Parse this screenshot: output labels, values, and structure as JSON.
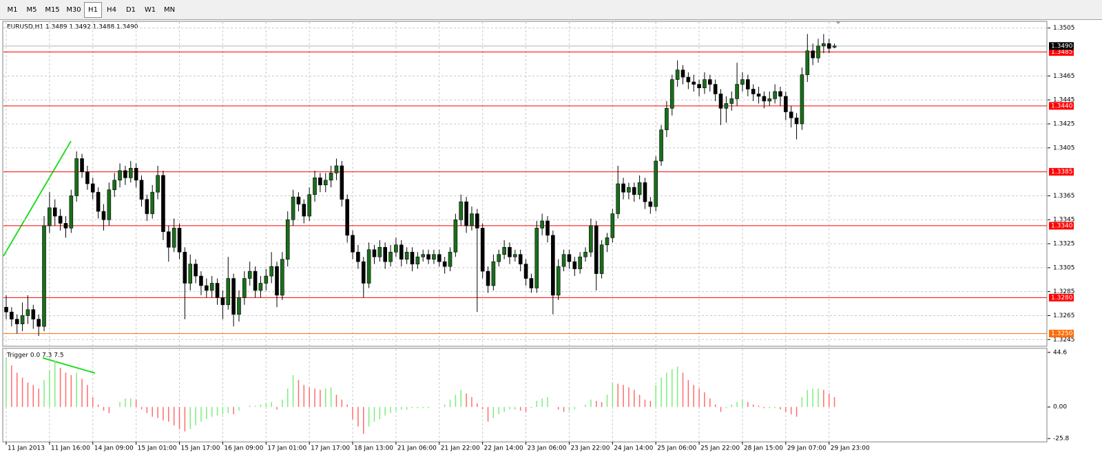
{
  "toolbar": {
    "timeframes": [
      "M1",
      "M5",
      "M15",
      "M30",
      "H1",
      "H4",
      "D1",
      "W1",
      "MN"
    ],
    "active": "H1"
  },
  "chart_data": {
    "type": "candlestick",
    "title": "EURUSD,H1  1.3489 1.3492 1.3488 1.3490",
    "categories": [
      "11 Jan 2013",
      null,
      null,
      null,
      null,
      null,
      null,
      null,
      "11 Jan 16:00",
      null,
      null,
      null,
      null,
      null,
      null,
      null,
      "14 Jan 09:00",
      null,
      null,
      null,
      null,
      null,
      null,
      null,
      "15 Jan 01:00",
      null,
      null,
      null,
      null,
      null,
      null,
      null,
      "15 Jan 17:00",
      null,
      null,
      null,
      null,
      null,
      null,
      null,
      "16 Jan 09:00",
      null,
      null,
      null,
      null,
      null,
      null,
      null,
      "17 Jan 01:00",
      null,
      null,
      null,
      null,
      null,
      null,
      null,
      "17 Jan 17:00",
      null,
      null,
      null,
      null,
      null,
      null,
      null,
      "18 Jan 13:00",
      null,
      null,
      null,
      null,
      null,
      null,
      null,
      "21 Jan 06:00",
      null,
      null,
      null,
      null,
      null,
      null,
      null,
      "21 Jan 22:00",
      null,
      null,
      null,
      null,
      null,
      null,
      null,
      "22 Jan 14:00",
      null,
      null,
      null,
      null,
      null,
      null,
      null,
      "23 Jan 06:00",
      null,
      null,
      null,
      null,
      null,
      null,
      null,
      "23 Jan 22:00",
      null,
      null,
      null,
      null,
      null,
      null,
      null,
      "24 Jan 14:00",
      null,
      null,
      null,
      null,
      null,
      null,
      null,
      "25 Jan 06:00",
      null,
      null,
      null,
      null,
      null,
      null,
      null,
      "25 Jan 22:00",
      null,
      null,
      null,
      null,
      null,
      null,
      null,
      "28 Jan 15:00",
      null,
      null,
      null,
      null,
      null,
      null,
      null,
      "29 Jan 07:00",
      null,
      null,
      null,
      null,
      null,
      null,
      null,
      "29 Jan 23:00",
      null
    ],
    "candles": [
      [
        1.3272,
        1.3282,
        1.3262,
        1.3268
      ],
      [
        1.3268,
        1.3272,
        1.3256,
        1.3262
      ],
      [
        1.3262,
        1.3266,
        1.325,
        1.3258
      ],
      [
        1.3258,
        1.3276,
        1.3252,
        1.3265
      ],
      [
        1.3265,
        1.3282,
        1.3258,
        1.327
      ],
      [
        1.327,
        1.3274,
        1.3254,
        1.3262
      ],
      [
        1.3262,
        1.3266,
        1.3248,
        1.3256
      ],
      [
        1.3256,
        1.3348,
        1.3252,
        1.334
      ],
      [
        1.334,
        1.3368,
        1.3334,
        1.3355
      ],
      [
        1.3355,
        1.3362,
        1.334,
        1.3348
      ],
      [
        1.3348,
        1.3354,
        1.3336,
        1.3342
      ],
      [
        1.3342,
        1.3348,
        1.333,
        1.3338
      ],
      [
        1.3338,
        1.337,
        1.3334,
        1.3365
      ],
      [
        1.3365,
        1.3402,
        1.336,
        1.3396
      ],
      [
        1.3396,
        1.34,
        1.338,
        1.3385
      ],
      [
        1.3385,
        1.339,
        1.337,
        1.3375
      ],
      [
        1.3375,
        1.338,
        1.3362,
        1.3368
      ],
      [
        1.3368,
        1.3372,
        1.3346,
        1.3352
      ],
      [
        1.3352,
        1.3358,
        1.3336,
        1.3345
      ],
      [
        1.3345,
        1.3376,
        1.334,
        1.337
      ],
      [
        1.337,
        1.3384,
        1.3364,
        1.3378
      ],
      [
        1.3378,
        1.3392,
        1.3372,
        1.3386
      ],
      [
        1.3386,
        1.339,
        1.3374,
        1.338
      ],
      [
        1.338,
        1.3394,
        1.3376,
        1.3388
      ],
      [
        1.3388,
        1.3392,
        1.3372,
        1.3378
      ],
      [
        1.3378,
        1.3382,
        1.3356,
        1.3362
      ],
      [
        1.3362,
        1.3366,
        1.3344,
        1.335
      ],
      [
        1.335,
        1.3374,
        1.3346,
        1.3368
      ],
      [
        1.3368,
        1.339,
        1.3362,
        1.3382
      ],
      [
        1.3382,
        1.3386,
        1.3328,
        1.3335
      ],
      [
        1.3335,
        1.334,
        1.331,
        1.3322
      ],
      [
        1.3322,
        1.3346,
        1.3318,
        1.3338
      ],
      [
        1.3338,
        1.3342,
        1.3312,
        1.3318
      ],
      [
        1.3318,
        1.3322,
        1.3262,
        1.3292
      ],
      [
        1.3292,
        1.3316,
        1.3286,
        1.3308
      ],
      [
        1.3308,
        1.3312,
        1.3292,
        1.3298
      ],
      [
        1.3298,
        1.3302,
        1.3282,
        1.329
      ],
      [
        1.329,
        1.3296,
        1.328,
        1.3286
      ],
      [
        1.3286,
        1.3298,
        1.328,
        1.3292
      ],
      [
        1.3292,
        1.3296,
        1.3274,
        1.328
      ],
      [
        1.328,
        1.3286,
        1.3262,
        1.3274
      ],
      [
        1.3274,
        1.3314,
        1.327,
        1.3296
      ],
      [
        1.3296,
        1.33,
        1.3256,
        1.3266
      ],
      [
        1.3266,
        1.3286,
        1.326,
        1.328
      ],
      [
        1.328,
        1.3302,
        1.3274,
        1.3296
      ],
      [
        1.3296,
        1.331,
        1.329,
        1.3302
      ],
      [
        1.3302,
        1.3306,
        1.328,
        1.3286
      ],
      [
        1.3286,
        1.3298,
        1.328,
        1.3292
      ],
      [
        1.3292,
        1.3304,
        1.3286,
        1.3298
      ],
      [
        1.3298,
        1.3318,
        1.3292,
        1.3306
      ],
      [
        1.3306,
        1.331,
        1.3272,
        1.3282
      ],
      [
        1.3282,
        1.3318,
        1.3278,
        1.3312
      ],
      [
        1.3312,
        1.3352,
        1.3306,
        1.3345
      ],
      [
        1.3345,
        1.337,
        1.334,
        1.3364
      ],
      [
        1.3364,
        1.3368,
        1.3352,
        1.3358
      ],
      [
        1.3358,
        1.3362,
        1.3342,
        1.3348
      ],
      [
        1.3348,
        1.3372,
        1.3344,
        1.3366
      ],
      [
        1.3366,
        1.3386,
        1.336,
        1.338
      ],
      [
        1.338,
        1.3384,
        1.3368,
        1.3374
      ],
      [
        1.3374,
        1.3384,
        1.3368,
        1.3378
      ],
      [
        1.3378,
        1.339,
        1.3372,
        1.3384
      ],
      [
        1.3384,
        1.3396,
        1.3378,
        1.339
      ],
      [
        1.339,
        1.3394,
        1.3356,
        1.3362
      ],
      [
        1.3362,
        1.3366,
        1.3326,
        1.3332
      ],
      [
        1.3332,
        1.3336,
        1.3312,
        1.3318
      ],
      [
        1.3318,
        1.3324,
        1.3304,
        1.331
      ],
      [
        1.331,
        1.3314,
        1.328,
        1.3292
      ],
      [
        1.3292,
        1.3326,
        1.3288,
        1.332
      ],
      [
        1.332,
        1.3324,
        1.3308,
        1.3314
      ],
      [
        1.3314,
        1.3328,
        1.331,
        1.3322
      ],
      [
        1.3322,
        1.3326,
        1.3304,
        1.331
      ],
      [
        1.331,
        1.3324,
        1.3306,
        1.3318
      ],
      [
        1.3318,
        1.333,
        1.3314,
        1.3324
      ],
      [
        1.3324,
        1.3328,
        1.3306,
        1.3312
      ],
      [
        1.3312,
        1.3322,
        1.3308,
        1.3318
      ],
      [
        1.3318,
        1.3322,
        1.3302,
        1.3308
      ],
      [
        1.3308,
        1.3318,
        1.3304,
        1.3314
      ],
      [
        1.3314,
        1.332,
        1.331,
        1.3316
      ],
      [
        1.3316,
        1.332,
        1.3308,
        1.3312
      ],
      [
        1.3312,
        1.332,
        1.3308,
        1.3316
      ],
      [
        1.3316,
        1.332,
        1.3306,
        1.331
      ],
      [
        1.331,
        1.3314,
        1.33,
        1.3306
      ],
      [
        1.3306,
        1.3322,
        1.3302,
        1.3318
      ],
      [
        1.3318,
        1.335,
        1.3314,
        1.3345
      ],
      [
        1.3345,
        1.3366,
        1.334,
        1.336
      ],
      [
        1.336,
        1.3364,
        1.3334,
        1.334
      ],
      [
        1.334,
        1.3356,
        1.3336,
        1.335
      ],
      [
        1.335,
        1.3354,
        1.3268,
        1.3338
      ],
      [
        1.3338,
        1.3342,
        1.3296,
        1.3302
      ],
      [
        1.3302,
        1.3306,
        1.3284,
        1.329
      ],
      [
        1.329,
        1.3316,
        1.3286,
        1.331
      ],
      [
        1.331,
        1.332,
        1.3306,
        1.3316
      ],
      [
        1.3316,
        1.3328,
        1.3312,
        1.3322
      ],
      [
        1.3322,
        1.3326,
        1.3308,
        1.3314
      ],
      [
        1.3314,
        1.332,
        1.331,
        1.3316
      ],
      [
        1.3316,
        1.332,
        1.3302,
        1.3308
      ],
      [
        1.3308,
        1.3312,
        1.329,
        1.3296
      ],
      [
        1.3296,
        1.33,
        1.3284,
        1.3288
      ],
      [
        1.3288,
        1.3344,
        1.3284,
        1.3338
      ],
      [
        1.3338,
        1.335,
        1.3332,
        1.3344
      ],
      [
        1.3344,
        1.3348,
        1.3326,
        1.3332
      ],
      [
        1.3332,
        1.3336,
        1.3266,
        1.3282
      ],
      [
        1.3282,
        1.3312,
        1.3278,
        1.3306
      ],
      [
        1.3306,
        1.332,
        1.3302,
        1.3316
      ],
      [
        1.3316,
        1.332,
        1.3304,
        1.331
      ],
      [
        1.331,
        1.3314,
        1.3298,
        1.3304
      ],
      [
        1.3304,
        1.3318,
        1.33,
        1.3314
      ],
      [
        1.3314,
        1.3322,
        1.331,
        1.3318
      ],
      [
        1.3318,
        1.3346,
        1.3314,
        1.334
      ],
      [
        1.334,
        1.3344,
        1.3286,
        1.33
      ],
      [
        1.33,
        1.3328,
        1.3296,
        1.3324
      ],
      [
        1.3324,
        1.3334,
        1.3318,
        1.333
      ],
      [
        1.333,
        1.3354,
        1.3326,
        1.335
      ],
      [
        1.335,
        1.339,
        1.3346,
        1.3375
      ],
      [
        1.3375,
        1.338,
        1.3362,
        1.3368
      ],
      [
        1.3368,
        1.3376,
        1.3362,
        1.3372
      ],
      [
        1.3372,
        1.3376,
        1.336,
        1.3366
      ],
      [
        1.3366,
        1.3382,
        1.3362,
        1.3376
      ],
      [
        1.3376,
        1.338,
        1.3354,
        1.336
      ],
      [
        1.336,
        1.3364,
        1.335,
        1.3356
      ],
      [
        1.3356,
        1.3398,
        1.3352,
        1.3394
      ],
      [
        1.3394,
        1.3424,
        1.339,
        1.342
      ],
      [
        1.342,
        1.3444,
        1.3414,
        1.3438
      ],
      [
        1.3438,
        1.3466,
        1.3432,
        1.3462
      ],
      [
        1.3462,
        1.3478,
        1.3456,
        1.347
      ],
      [
        1.347,
        1.3474,
        1.3458,
        1.3464
      ],
      [
        1.3464,
        1.3468,
        1.3454,
        1.346
      ],
      [
        1.346,
        1.3466,
        1.3452,
        1.3458
      ],
      [
        1.3458,
        1.3462,
        1.3448,
        1.3455
      ],
      [
        1.3455,
        1.3468,
        1.345,
        1.3462
      ],
      [
        1.3462,
        1.3466,
        1.3452,
        1.3458
      ],
      [
        1.3458,
        1.3462,
        1.3444,
        1.345
      ],
      [
        1.345,
        1.3454,
        1.3424,
        1.3438
      ],
      [
        1.3438,
        1.3448,
        1.3426,
        1.3442
      ],
      [
        1.3442,
        1.3452,
        1.3436,
        1.3446
      ],
      [
        1.3446,
        1.3476,
        1.344,
        1.3458
      ],
      [
        1.3458,
        1.3468,
        1.3452,
        1.3462
      ],
      [
        1.3462,
        1.3466,
        1.3448,
        1.3454
      ],
      [
        1.3454,
        1.3458,
        1.3444,
        1.345
      ],
      [
        1.345,
        1.3456,
        1.3442,
        1.3448
      ],
      [
        1.3448,
        1.3452,
        1.3438,
        1.3444
      ],
      [
        1.3444,
        1.3452,
        1.344,
        1.3446
      ],
      [
        1.3446,
        1.3458,
        1.3442,
        1.3452
      ],
      [
        1.3452,
        1.3456,
        1.344,
        1.3448
      ],
      [
        1.3448,
        1.3452,
        1.3428,
        1.3435
      ],
      [
        1.3435,
        1.344,
        1.3422,
        1.343
      ],
      [
        1.343,
        1.3434,
        1.3412,
        1.3425
      ],
      [
        1.3425,
        1.3472,
        1.342,
        1.3466
      ],
      [
        1.3466,
        1.35,
        1.346,
        1.3486
      ],
      [
        1.3486,
        1.3492,
        1.3474,
        1.348
      ],
      [
        1.348,
        1.3496,
        1.3476,
        1.349
      ],
      [
        1.349,
        1.35,
        1.3484,
        1.3492
      ],
      [
        1.3492,
        1.3496,
        1.3484,
        1.3488
      ],
      [
        1.3489,
        1.3492,
        1.3488,
        1.349
      ]
    ],
    "up_color": "#1a6e1a",
    "down_color": "#000000",
    "ylim": [
      1.324,
      1.351
    ],
    "yticks": [
      1.3505,
      1.3465,
      1.3445,
      1.3425,
      1.3405,
      1.3365,
      1.3345,
      1.3325,
      1.3305,
      1.3285,
      1.3265,
      1.3245
    ],
    "levels": [
      {
        "value": 1.3485,
        "label": "1.3485"
      },
      {
        "value": 1.344,
        "label": "1.3440"
      },
      {
        "value": 1.3385,
        "label": "1.3385"
      },
      {
        "value": 1.334,
        "label": "1.3340"
      },
      {
        "value": 1.328,
        "label": "1.3280"
      },
      {
        "value": 1.325,
        "label": "1.3250"
      }
    ],
    "level_color": "#ff0000",
    "last_level_color": "#ff6a00",
    "price": {
      "value": 1.349,
      "label": "1.3490"
    },
    "grid": true,
    "indicator": {
      "type": "histogram",
      "name": "Trigger 0.0 7.3 7.5",
      "up_color": "#7cec7c",
      "down_color": "#ff6b6b",
      "values": [
        40,
        34,
        28,
        24,
        20,
        18,
        15,
        22,
        30,
        38,
        32,
        28,
        26,
        28,
        23,
        18,
        8,
        2,
        -3,
        -5,
        0,
        4,
        7,
        7,
        6,
        -2,
        -5,
        -8,
        -9,
        -11,
        -12,
        -15,
        -18,
        -20,
        -18,
        -15,
        -12,
        -10,
        -8,
        -7,
        -6,
        -5,
        -6,
        -3,
        0,
        1,
        1,
        2,
        3,
        4,
        -2,
        6,
        15,
        26,
        22,
        18,
        16,
        15,
        14,
        15,
        16,
        10,
        6,
        2,
        -10,
        -16,
        -22,
        -16,
        -12,
        -10,
        -7,
        -5,
        -3,
        -2,
        -2,
        -1,
        -1,
        -1,
        -1,
        0,
        0,
        2,
        6,
        10,
        14,
        11,
        8,
        3,
        -2,
        -12,
        -9,
        -6,
        -4,
        -2,
        -2,
        -3,
        -4,
        -1,
        5,
        7,
        8,
        0,
        -2,
        -4,
        -3,
        -2,
        0,
        2,
        6,
        5,
        4,
        10,
        20,
        19,
        18,
        16,
        14,
        10,
        6,
        5,
        18,
        24,
        28,
        31,
        33,
        28,
        22,
        18,
        15,
        12,
        7,
        2,
        -4,
        -1,
        2,
        4,
        6,
        4,
        2,
        1,
        -1,
        -1,
        -1,
        -2,
        -4,
        -6,
        -8,
        8,
        14,
        15,
        15,
        14,
        11,
        8
      ],
      "ylim": [
        -28,
        47.4
      ],
      "yticks": [
        44.6,
        {
          "value": 0,
          "label": "0.00"
        },
        -25.8
      ]
    }
  }
}
